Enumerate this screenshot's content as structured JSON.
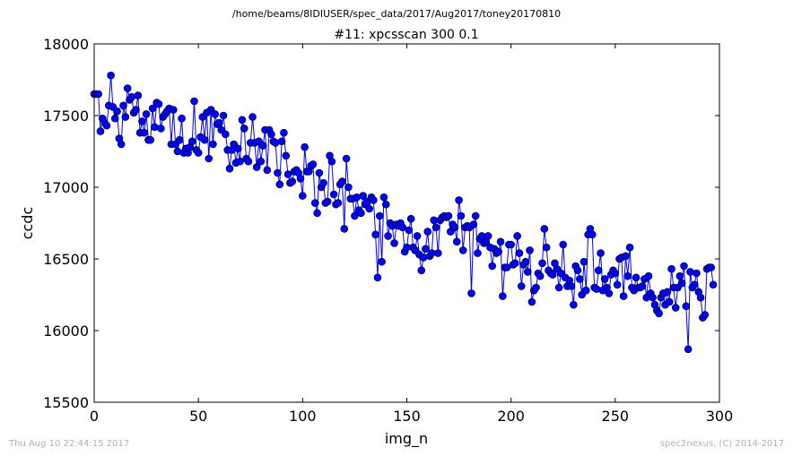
{
  "figure": {
    "suptitle": "/home/beams/8IDIUSER/spec_data/2017/Aug2017/toney20170810",
    "footer_left": "Thu Aug 10 22:44:15 2017",
    "footer_right": "spec2nexus, (C) 2014-2017"
  },
  "colors": {
    "series": "#0000ff",
    "marker": "#0000ff",
    "frame": "#000000"
  },
  "chart_data": {
    "type": "line",
    "title": "#11: xpcsscan 300 0.1",
    "xlabel": "img_n",
    "ylabel": "ccdc",
    "xlim": [
      0,
      300
    ],
    "ylim": [
      15500,
      18000
    ],
    "x_ticks": [
      0,
      50,
      100,
      150,
      200,
      250,
      300
    ],
    "y_ticks": [
      15500,
      16000,
      16500,
      17000,
      17500,
      18000
    ],
    "x_tick_labels": [
      "0",
      "50",
      "100",
      "150",
      "200",
      "250",
      "300"
    ],
    "y_tick_labels": [
      "15500",
      "16000",
      "16500",
      "17000",
      "17500",
      "18000"
    ],
    "grid": false,
    "legend": "none",
    "marker": "circle",
    "series": [
      {
        "x_start": 0,
        "x_step": 1,
        "values": [
          17650,
          17650,
          17650,
          17390,
          17480,
          17450,
          17430,
          17570,
          17780,
          17560,
          17480,
          17530,
          17340,
          17300,
          17570,
          17490,
          17690,
          17610,
          17630,
          17520,
          17540,
          17640,
          17380,
          17460,
          17380,
          17510,
          17330,
          17330,
          17550,
          17420,
          17590,
          17580,
          17410,
          17490,
          17510,
          17530,
          17550,
          17300,
          17540,
          17300,
          17250,
          17330,
          17480,
          17240,
          17270,
          17240,
          17280,
          17320,
          17600,
          17260,
          17240,
          17350,
          17490,
          17330,
          17520,
          17200,
          17540,
          17300,
          17510,
          17440,
          17450,
          17400,
          17500,
          17370,
          17260,
          17130,
          17260,
          17300,
          17170,
          17270,
          17180,
          17470,
          17410,
          17200,
          17180,
          17310,
          17490,
          17310,
          17140,
          17320,
          17180,
          17290,
          17400,
          17120,
          17400,
          17370,
          17320,
          17310,
          17100,
          17020,
          17320,
          17380,
          17220,
          17090,
          17030,
          17040,
          17110,
          17120,
          17100,
          17060,
          16940,
          17280,
          17110,
          17110,
          17150,
          17160,
          16890,
          16820,
          17100,
          17000,
          17030,
          16890,
          16900,
          17220,
          17180,
          16950,
          16880,
          16890,
          17020,
          17040,
          16710,
          17200,
          17000,
          16920,
          16920,
          16800,
          16930,
          16840,
          16820,
          16940,
          16880,
          16900,
          16850,
          16930,
          16910,
          16670,
          16370,
          16800,
          16480,
          16930,
          16880,
          16660,
          16750,
          16730,
          16610,
          16740,
          16730,
          16750,
          16720,
          16550,
          16580,
          16700,
          16780,
          16580,
          16560,
          16660,
          16530,
          16420,
          16510,
          16570,
          16690,
          16520,
          16540,
          16770,
          16720,
          16540,
          16770,
          16790,
          16800,
          16790,
          16800,
          16690,
          16740,
          16720,
          16620,
          16910,
          16800,
          16560,
          16720,
          16730,
          16720,
          16260,
          16740,
          16800,
          16540,
          16640,
          16660,
          16610,
          16620,
          16660,
          16580,
          16450,
          16570,
          16540,
          16550,
          16620,
          16240,
          16440,
          16440,
          16600,
          16600,
          16460,
          16470,
          16660,
          16540,
          16310,
          16460,
          16480,
          16410,
          16560,
          16200,
          16280,
          16300,
          16400,
          16380,
          16470,
          16710,
          16580,
          16420,
          16400,
          16390,
          16470,
          16430,
          16300,
          16400,
          16600,
          16370,
          16310,
          16350,
          16310,
          16180,
          16450,
          16420,
          16360,
          16250,
          16480,
          16280,
          16670,
          16710,
          16670,
          16300,
          16290,
          16420,
          16540,
          16280,
          16360,
          16300,
          16260,
          16390,
          16420,
          16400,
          16320,
          16500,
          16510,
          16240,
          16520,
          16380,
          16580,
          16300,
          16280,
          16370,
          16300,
          16300,
          16310,
          16360,
          16230,
          16380,
          16260,
          16230,
          16180,
          16140,
          16120,
          16230,
          16260,
          16180,
          16270,
          16200,
          16430,
          16300,
          16160,
          16300,
          16380,
          16330,
          16450,
          16170,
          15870,
          16410,
          16300,
          16320,
          16400,
          16270,
          16230,
          16090,
          16110,
          16430,
          16440,
          16440,
          16320
        ]
      }
    ]
  }
}
